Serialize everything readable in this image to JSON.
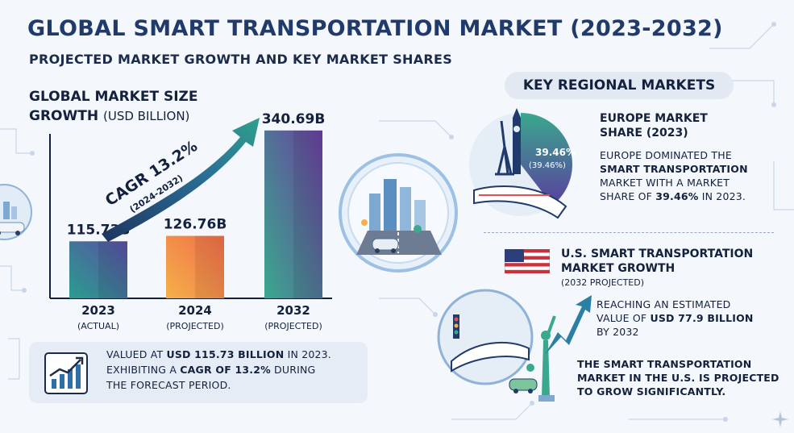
{
  "header": {
    "title": "GLOBAL SMART TRANSPORTATION MARKET (2023-2032)",
    "subtitle": "PROJECTED MARKET GROWTH AND KEY MARKET SHARES"
  },
  "chart_data": {
    "type": "bar",
    "title_line1": "GLOBAL MARKET SIZE",
    "title_line2": "GROWTH",
    "unit_text": "(USD BILLION)",
    "categories": [
      "2023",
      "2024",
      "2032"
    ],
    "category_notes": [
      "(ACTUAL)",
      "(PROJECTED)",
      "(PROJECTED)"
    ],
    "values": [
      115.73,
      126.76,
      340.69
    ],
    "value_labels": [
      "115.73B",
      "126.76B",
      "340.69B"
    ],
    "ylim": [
      0,
      360
    ],
    "colors": [
      [
        "#2a9d8f",
        "#5a4fa3"
      ],
      [
        "#f4b04a",
        "#f16d4a"
      ],
      [
        "#3aa88e",
        "#6a3f9e"
      ]
    ],
    "annotation": {
      "main": "CAGR 13.2%",
      "sub": "(2024-2032)"
    },
    "grid": false,
    "legend": "none"
  },
  "summary": {
    "line1_pre": "VALUED AT ",
    "line1_bold": "USD 115.73 BILLION",
    "line1_post": " IN 2023.",
    "line2_pre": "EXHIBITING A ",
    "line2_bold": "CAGR OF 13.2%",
    "line2_post": " DURING",
    "line3": "THE FORECAST PERIOD."
  },
  "regional": {
    "pill": "KEY REGIONAL MARKETS",
    "europe": {
      "heading": "EUROPE MARKET SHARE (2023)",
      "share_value": 39.46,
      "pie_label": "39.46%",
      "pie_sublabel": "(39.46%)",
      "text_line1": "EUROPE DOMINATED THE",
      "text_bold": "SMART TRANSPORTATION",
      "text_line3": "MARKET WITH A MARKET",
      "text_line4_pre": "SHARE OF ",
      "text_line4_bold": "39.46%",
      "text_line4_post": " IN 2023."
    },
    "us": {
      "heading": "U.S. SMART TRANSPORTATION MARKET GROWTH",
      "sub": "(2032 PROJECTED)",
      "text1_line1": "REACHING AN ESTIMATED",
      "text1_line2_pre": "VALUE OF ",
      "text1_line2_bold": "USD 77.9 BILLION",
      "text1_line3": "BY 2032",
      "text2": "THE SMART TRANSPORTATION MARKET IN THE U.S. IS PROJECTED TO GROW SIGNIFICANTLY."
    }
  },
  "icons": {
    "summary": "growth-chart-icon",
    "city": "smart-city-icon",
    "europe": "europe-map-icon",
    "us": "statue-of-liberty-icon",
    "flag": "us-flag-icon"
  }
}
